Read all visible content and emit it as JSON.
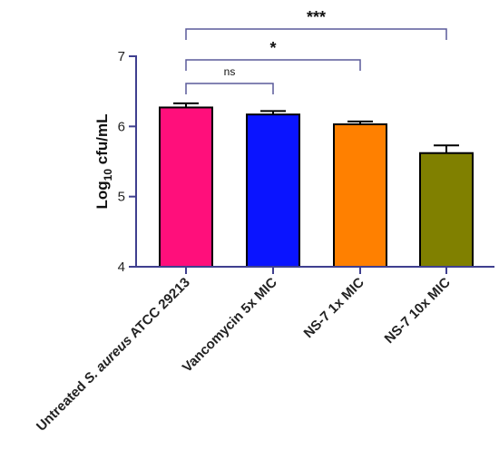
{
  "chart_data": {
    "type": "bar",
    "categories": [
      [
        "Untreated ",
        "S. aureus",
        " ATCC 29213"
      ],
      [
        "Vancomycin 5x MIC"
      ],
      [
        "NS-7 1x MIC"
      ],
      [
        "NS-7 10x MIC"
      ]
    ],
    "values": [
      6.27,
      6.17,
      6.03,
      5.62
    ],
    "errors": [
      0.06,
      0.05,
      0.04,
      0.11
    ],
    "colors": [
      "#FF0F7B",
      "#0A14FF",
      "#FF8000",
      "#808000"
    ],
    "ylabel": "Log10 cfu/mL",
    "ylabel_parts": [
      "Log",
      "10",
      " cfu/mL"
    ],
    "ylim": [
      4,
      7
    ],
    "yticks": [
      "4",
      "5",
      "6",
      "7"
    ],
    "comparisons": [
      {
        "from": 0,
        "to": 1,
        "label": "ns"
      },
      {
        "from": 0,
        "to": 2,
        "label": "*"
      },
      {
        "from": 0,
        "to": 3,
        "label": "***"
      }
    ],
    "axis_color": "#3F3F8F",
    "bracket_color": "#5A5A9A"
  }
}
